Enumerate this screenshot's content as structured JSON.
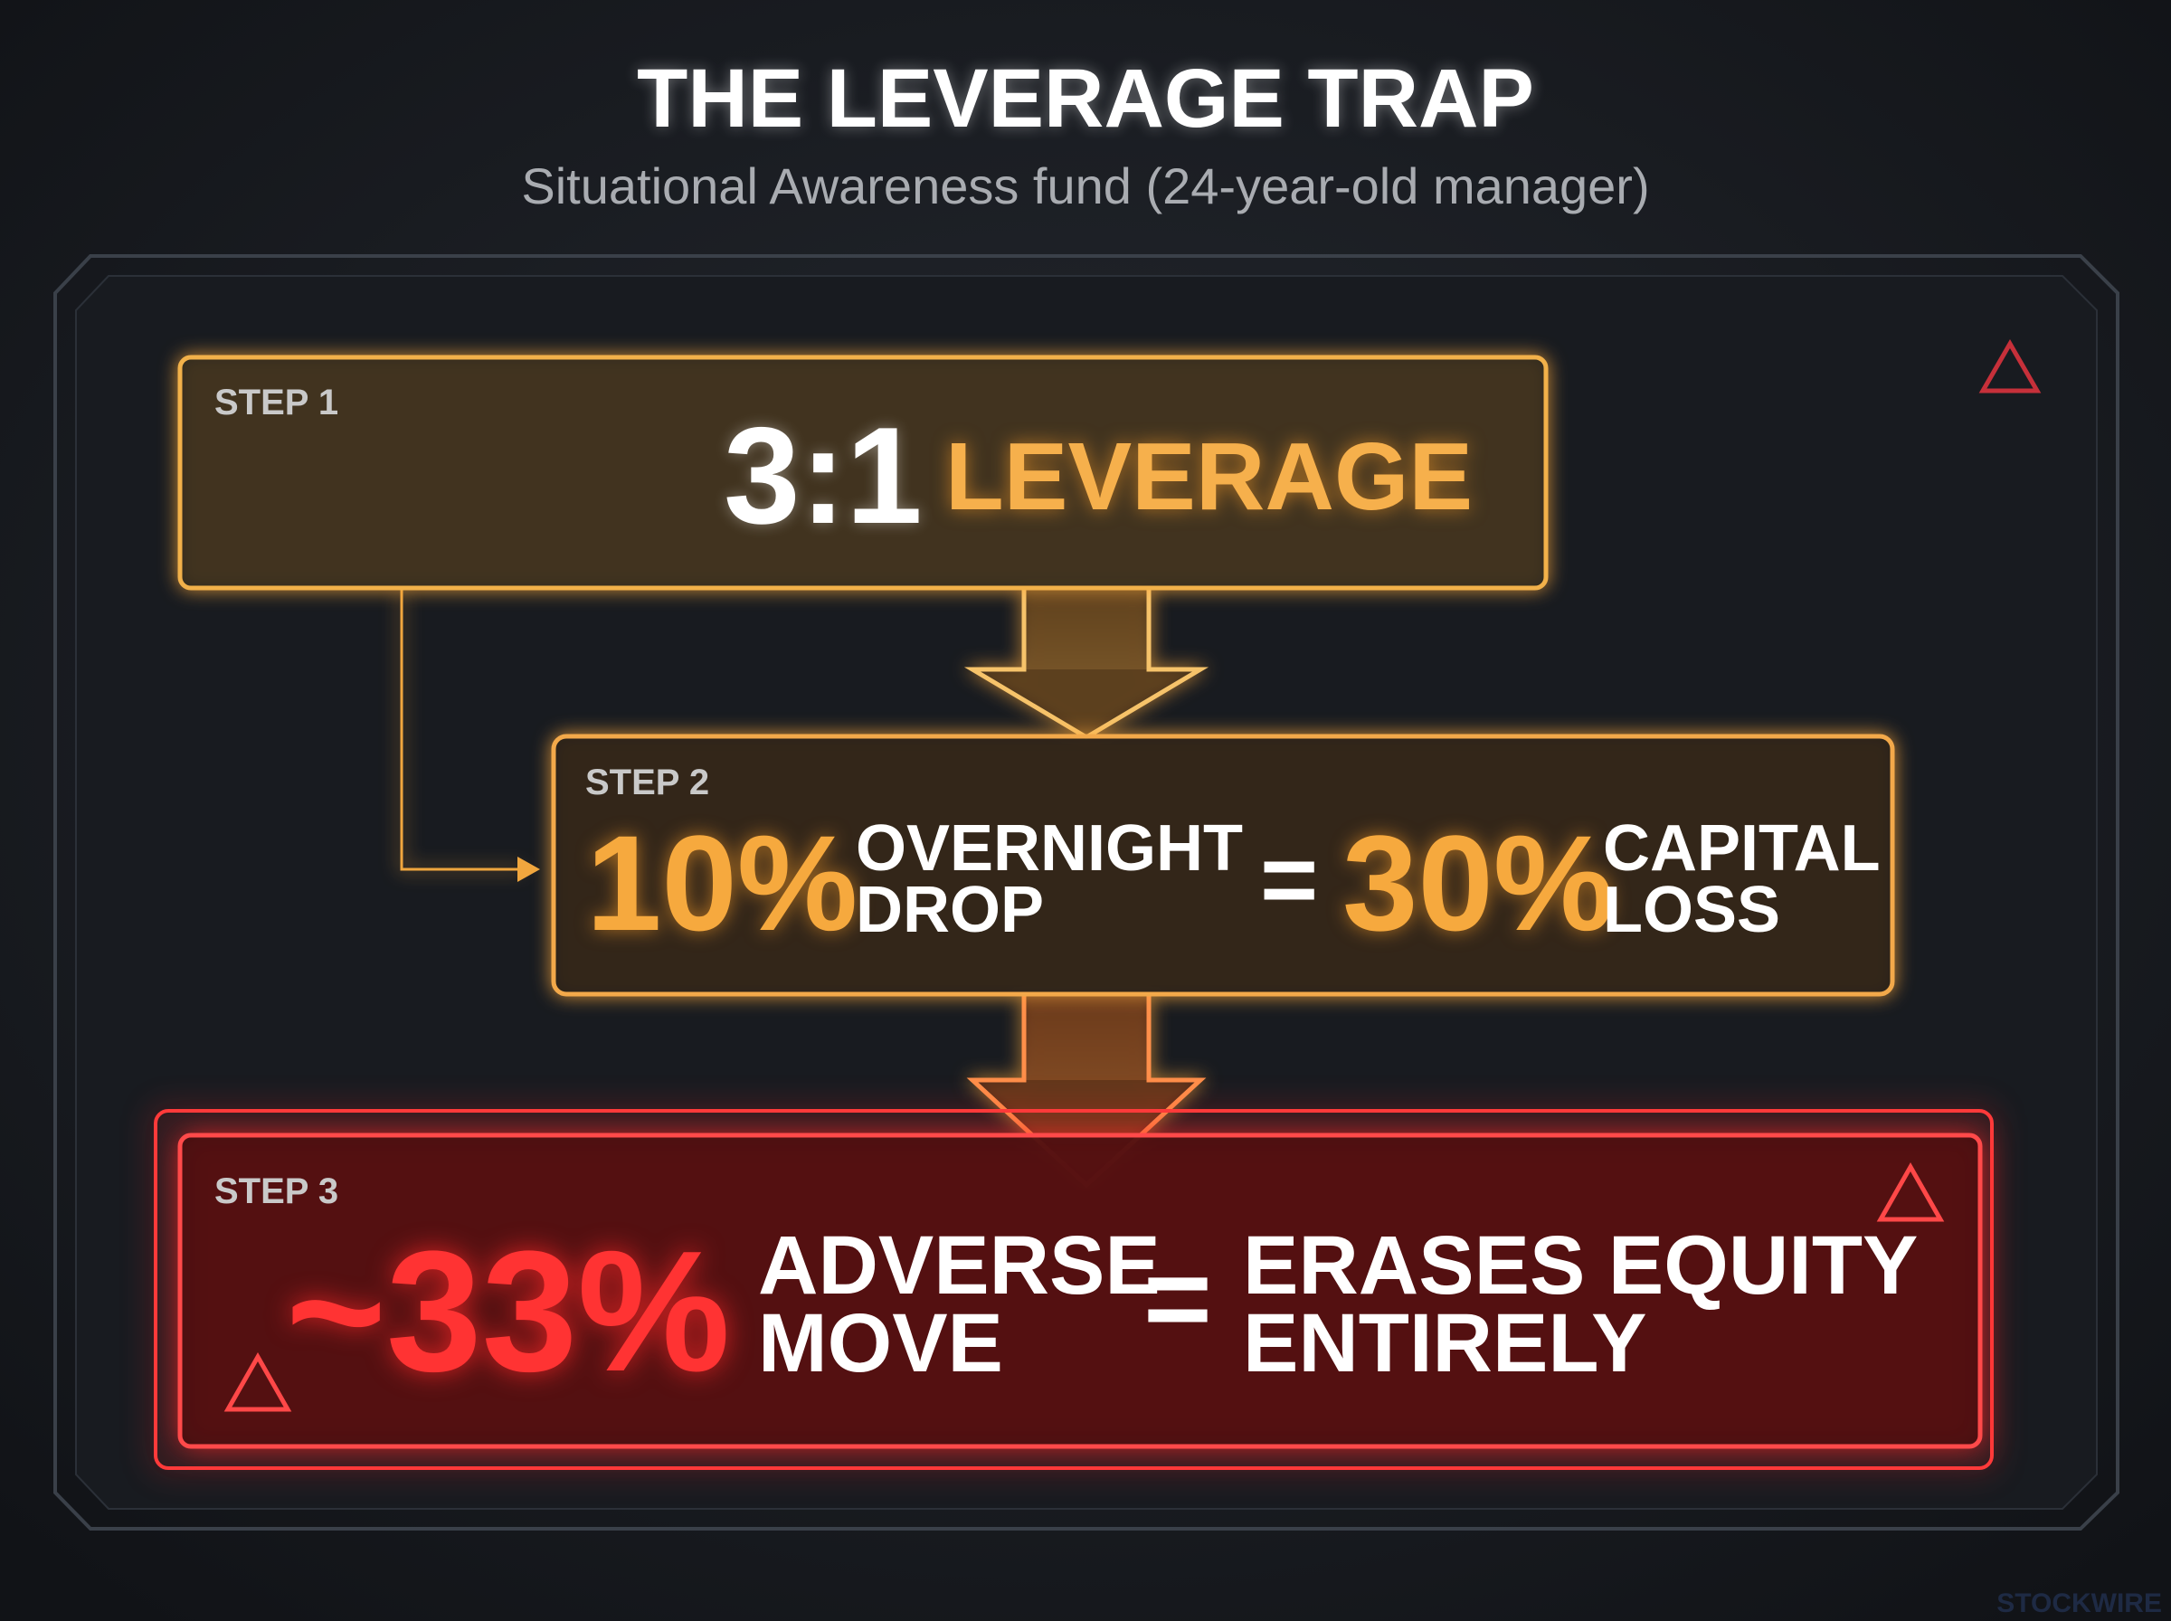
{
  "header": {
    "title": "THE LEVERAGE TRAP",
    "subtitle": "Situational Awareness fund (24-year-old manager)"
  },
  "steps": [
    {
      "label": "STEP 1",
      "ratio": "3:1",
      "term": "LEVERAGE"
    },
    {
      "label": "STEP 2",
      "drop": "10%",
      "drop_text": [
        "OVERNIGHT",
        "DROP"
      ],
      "equals": "=",
      "loss": "30%",
      "loss_text": [
        "CAPITAL",
        "LOSS"
      ]
    },
    {
      "label": "STEP 3",
      "move": "~33%",
      "move_text": [
        "ADVERSE",
        "MOVE"
      ],
      "equals": "=",
      "result_text": [
        "ERASES EQUITY",
        "ENTIRELY"
      ]
    }
  ],
  "watermark": "STOCKWIRE"
}
